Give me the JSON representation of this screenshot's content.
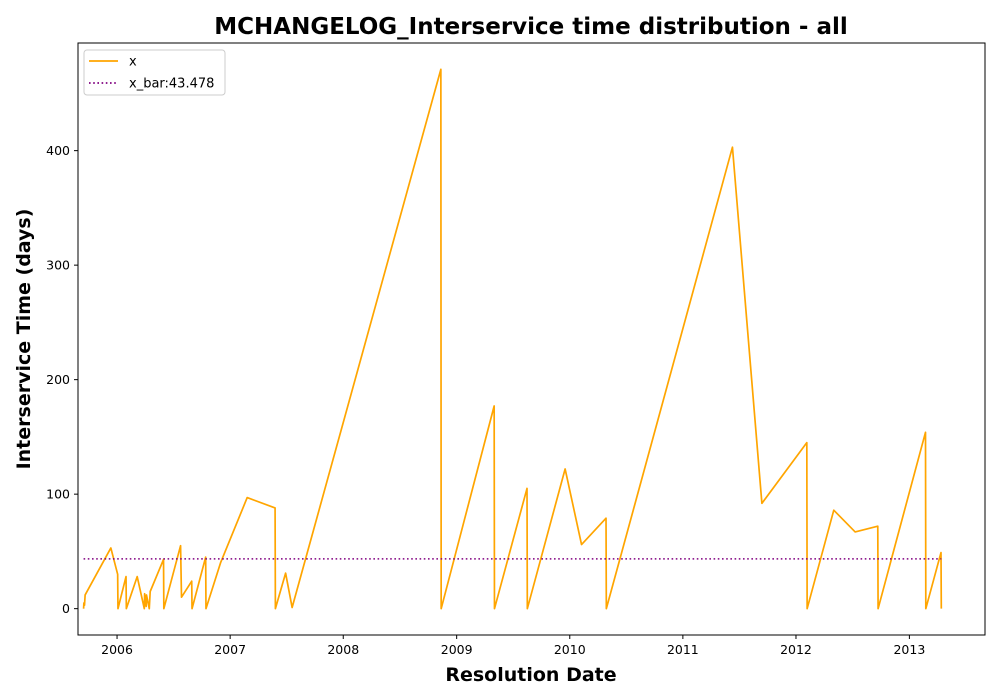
{
  "chart_data": {
    "type": "line",
    "title": "MCHANGELOG_Interservice time distribution - all",
    "xlabel": "Resolution Date",
    "ylabel": "Interservice Time (days)",
    "x_ticks": [
      "2006",
      "2007",
      "2008",
      "2009",
      "2010",
      "2011",
      "2012",
      "2013"
    ],
    "y_ticks": [
      "0",
      "100",
      "200",
      "300",
      "400"
    ],
    "xlim": [
      "2005-08-28",
      "2013-09-02"
    ],
    "ylim": [
      -23,
      494
    ],
    "grid": false,
    "legend": "upper-left",
    "series": [
      {
        "name": "x",
        "color": "#ffa500",
        "style": "solid",
        "x": [
          "2005-09-15",
          "2005-09-16",
          "2005-09-18",
          "2005-09-20",
          "2005-12-12",
          "2006-01-03",
          "2006-01-04",
          "2006-01-30",
          "2006-01-31",
          "2006-03-07",
          "2006-03-30",
          "2006-03-31",
          "2006-04-05",
          "2006-04-06",
          "2006-04-15",
          "2006-04-18",
          "2006-05-31",
          "2006-06-01",
          "2006-07-25",
          "2006-07-28",
          "2006-08-30",
          "2006-08-31",
          "2006-10-14",
          "2006-10-15",
          "2006-12-01",
          "2007-02-25",
          "2007-05-26",
          "2007-05-27",
          "2007-06-29",
          "2007-07-20",
          "2008-11-11",
          "2008-11-12",
          "2009-05-02",
          "2009-05-03",
          "2009-08-16",
          "2009-08-17",
          "2009-12-17",
          "2010-02-08",
          "2010-04-28",
          "2010-04-29",
          "2011-06-10",
          "2011-09-13",
          "2012-02-05",
          "2012-02-06",
          "2012-05-02",
          "2012-07-10",
          "2012-09-21",
          "2012-09-22",
          "2013-02-22",
          "2013-02-23",
          "2013-04-13",
          "2013-04-14"
        ],
        "y": [
          0,
          5,
          3,
          12,
          53,
          30,
          0,
          28,
          0,
          28,
          0,
          13,
          2,
          12,
          0,
          15,
          43,
          0,
          55,
          10,
          24,
          0,
          45,
          0,
          40,
          97,
          88,
          0,
          31,
          1,
          471,
          0,
          177,
          0,
          105,
          0,
          122,
          56,
          79,
          0,
          403,
          92,
          145,
          0,
          86,
          67,
          72,
          0,
          154,
          0,
          49,
          0
        ]
      },
      {
        "name": "x_bar:43.478",
        "color": "#800080",
        "style": "dotted",
        "x": [
          "2005-09-15",
          "2013-04-14"
        ],
        "y": [
          43.478,
          43.478
        ]
      }
    ]
  }
}
